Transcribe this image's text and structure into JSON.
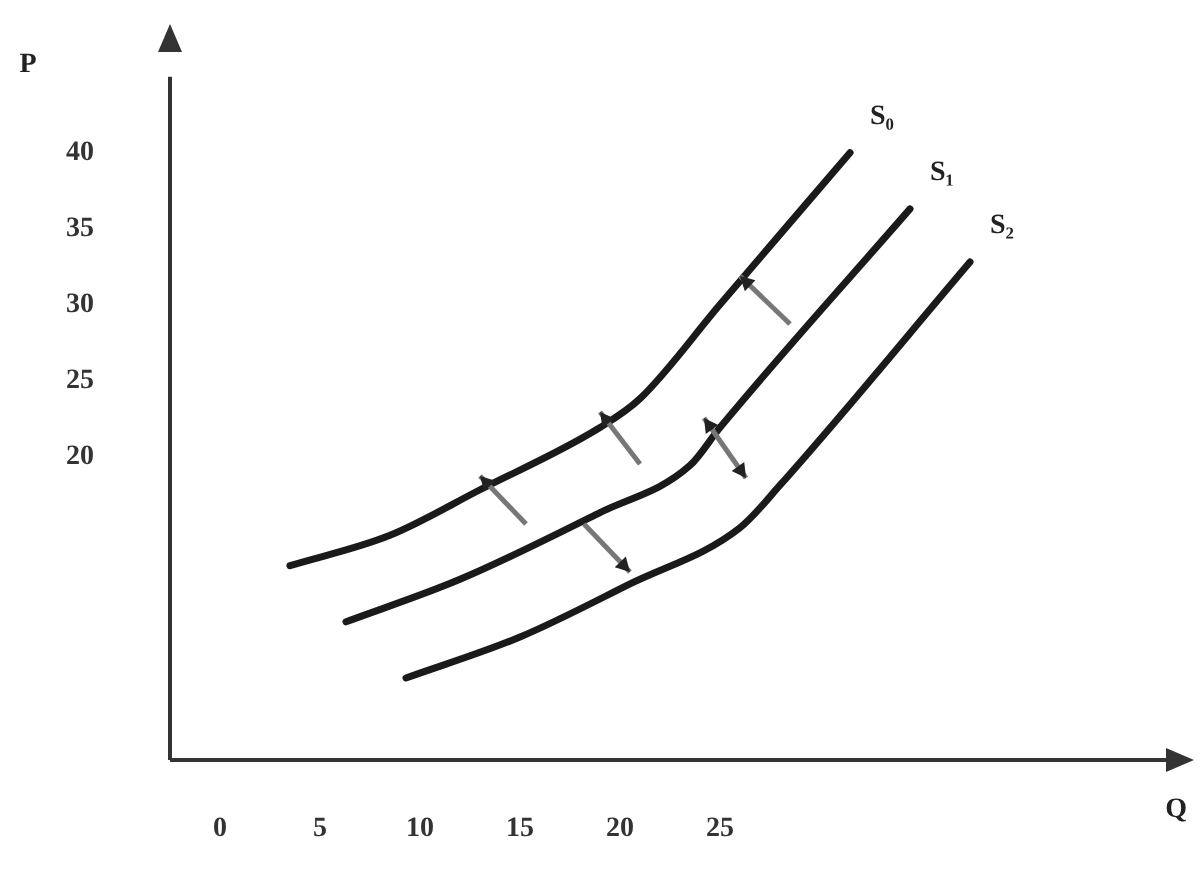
{
  "chart_data": {
    "type": "line",
    "xlabel": "Q",
    "ylabel": "P",
    "xlim": [
      -2.5,
      48
    ],
    "xticks": [
      0,
      5,
      10,
      15,
      20,
      25
    ],
    "ylim": [
      0,
      45
    ],
    "yticks": [
      20,
      25,
      30,
      35,
      40
    ],
    "grid": false,
    "legend": false,
    "marker": "none",
    "line_style": "solid",
    "series": [
      {
        "name": "S₀",
        "color": "#1a1a1a",
        "x": [
          3.5,
          8.5,
          13,
          19,
          21,
          25,
          31.5
        ],
        "values": [
          12.8,
          14.8,
          17.8,
          21.9,
          23.8,
          30,
          40
        ]
      },
      {
        "name": "S₁",
        "color": "#1a1a1a",
        "x": [
          6.3,
          12,
          19,
          23.5,
          25,
          34.5
        ],
        "values": [
          9.1,
          11.9,
          16.3,
          19.4,
          21.9,
          36.3
        ]
      },
      {
        "name": "S₂",
        "color": "#1a1a1a",
        "x": [
          9.3,
          15,
          20.5,
          26,
          28,
          37.5
        ],
        "values": [
          5.4,
          8.1,
          11.6,
          15.3,
          18.1,
          32.8
        ]
      }
    ]
  }
}
